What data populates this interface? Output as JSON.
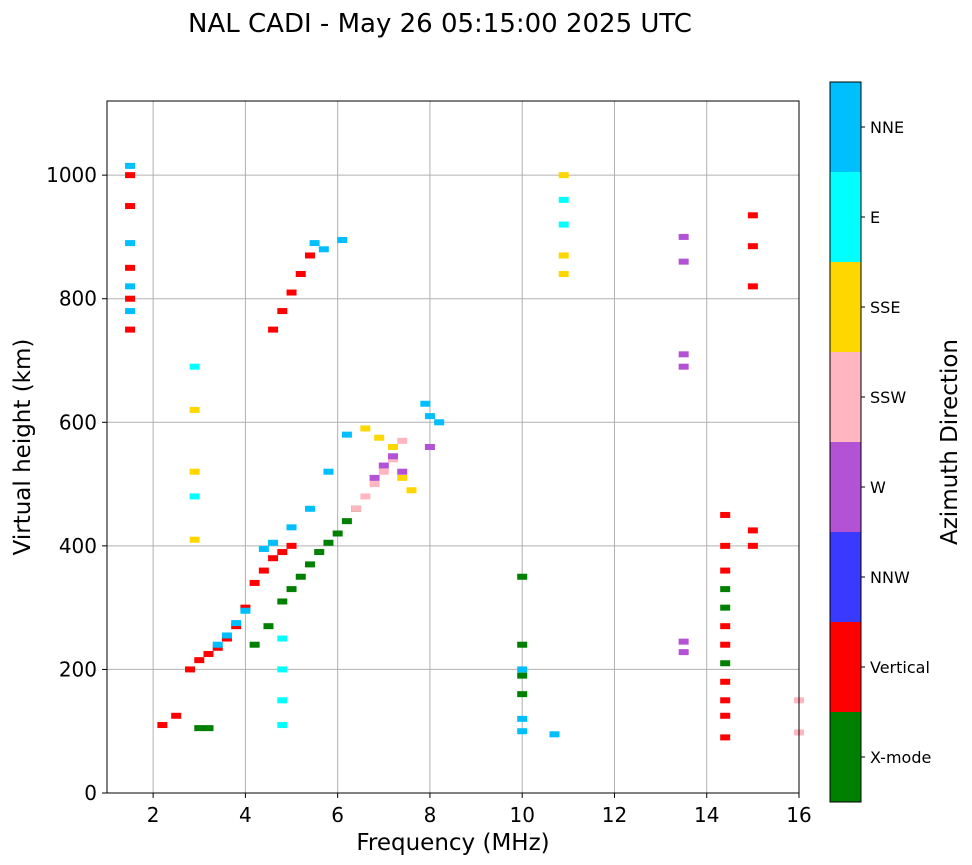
{
  "chart_data": {
    "type": "scatter",
    "title": "NAL CADI - May 26 05:15:00 2025 UTC",
    "xlabel": "Frequency (MHz)",
    "ylabel": "Virtual height (km)",
    "xlim": [
      1,
      16
    ],
    "ylim": [
      0,
      1120
    ],
    "xticks": [
      2,
      4,
      6,
      8,
      10,
      12,
      14,
      16
    ],
    "yticks": [
      0,
      200,
      400,
      600,
      800,
      1000
    ],
    "grid": true,
    "colorbar": {
      "label": "Azimuth Direction",
      "categories": [
        {
          "name": "X-mode",
          "color": "#008000"
        },
        {
          "name": "Vertical",
          "color": "#ff0000"
        },
        {
          "name": "NNW",
          "color": "#3a3aff"
        },
        {
          "name": "W",
          "color": "#b452d6"
        },
        {
          "name": "SSW",
          "color": "#ffb6c1"
        },
        {
          "name": "SSE",
          "color": "#ffd700"
        },
        {
          "name": "E",
          "color": "#00ffff"
        },
        {
          "name": "NNE",
          "color": "#00bfff"
        }
      ]
    },
    "traces": [
      {
        "category": "Vertical",
        "points": [
          [
            2.2,
            110
          ],
          [
            2.5,
            125
          ],
          [
            2.8,
            200
          ],
          [
            3.0,
            215
          ],
          [
            3.2,
            225
          ],
          [
            3.4,
            235
          ],
          [
            3.6,
            250
          ],
          [
            3.8,
            270
          ],
          [
            4.0,
            300
          ],
          [
            4.2,
            340
          ],
          [
            4.4,
            360
          ],
          [
            4.6,
            380
          ],
          [
            4.8,
            390
          ],
          [
            5.0,
            400
          ]
        ]
      },
      {
        "category": "NNE",
        "points": [
          [
            3.4,
            240
          ],
          [
            3.6,
            255
          ],
          [
            3.8,
            275
          ],
          [
            4.0,
            295
          ],
          [
            4.4,
            395
          ],
          [
            4.6,
            405
          ],
          [
            5.0,
            430
          ],
          [
            5.4,
            460
          ],
          [
            5.8,
            520
          ],
          [
            6.2,
            580
          ]
        ]
      },
      {
        "category": "X-mode",
        "points": [
          [
            3.0,
            105
          ],
          [
            3.2,
            105
          ],
          [
            4.2,
            240
          ],
          [
            4.5,
            270
          ],
          [
            4.8,
            310
          ],
          [
            5.0,
            330
          ],
          [
            5.2,
            350
          ],
          [
            5.4,
            370
          ],
          [
            5.6,
            390
          ],
          [
            5.8,
            405
          ],
          [
            6.0,
            420
          ],
          [
            6.2,
            440
          ],
          [
            6.4,
            460
          ]
        ]
      },
      {
        "category": "SSW",
        "points": [
          [
            6.4,
            460
          ],
          [
            6.6,
            480
          ],
          [
            6.8,
            500
          ],
          [
            7.0,
            520
          ],
          [
            7.2,
            540
          ],
          [
            7.4,
            570
          ]
        ]
      },
      {
        "category": "SSE",
        "points": [
          [
            6.6,
            590
          ],
          [
            6.9,
            575
          ],
          [
            7.2,
            560
          ],
          [
            7.4,
            510
          ],
          [
            7.6,
            490
          ]
        ]
      },
      {
        "category": "W",
        "points": [
          [
            6.8,
            510
          ],
          [
            7.0,
            530
          ],
          [
            7.2,
            545
          ],
          [
            7.4,
            520
          ],
          [
            8.0,
            560
          ]
        ]
      },
      {
        "category": "Vertical",
        "points": [
          [
            4.6,
            750
          ],
          [
            4.8,
            780
          ],
          [
            5.0,
            810
          ],
          [
            5.2,
            840
          ],
          [
            5.4,
            870
          ]
        ]
      },
      {
        "category": "NNE",
        "points": [
          [
            5.5,
            890
          ],
          [
            5.7,
            880
          ],
          [
            6.1,
            895
          ],
          [
            7.9,
            630
          ],
          [
            8.0,
            610
          ],
          [
            8.2,
            600
          ]
        ]
      },
      {
        "category": "Vertical",
        "points": [
          [
            1.5,
            1000
          ],
          [
            1.5,
            950
          ],
          [
            1.5,
            850
          ],
          [
            1.5,
            800
          ],
          [
            1.5,
            750
          ]
        ]
      },
      {
        "category": "NNE",
        "points": [
          [
            1.5,
            1015
          ],
          [
            1.5,
            890
          ],
          [
            1.5,
            820
          ],
          [
            1.5,
            780
          ]
        ]
      },
      {
        "category": "E",
        "points": [
          [
            2.9,
            690
          ],
          [
            2.9,
            480
          ],
          [
            4.8,
            250
          ],
          [
            4.8,
            200
          ],
          [
            4.8,
            150
          ],
          [
            4.8,
            110
          ],
          [
            10.9,
            960
          ],
          [
            10.9,
            920
          ]
        ]
      },
      {
        "category": "SSE",
        "points": [
          [
            2.9,
            620
          ],
          [
            2.9,
            520
          ],
          [
            2.9,
            410
          ],
          [
            10.9,
            1000
          ],
          [
            10.9,
            870
          ],
          [
            10.9,
            840
          ]
        ]
      },
      {
        "category": "X-mode",
        "points": [
          [
            10.0,
            350
          ],
          [
            10.0,
            240
          ],
          [
            10.0,
            190
          ],
          [
            10.0,
            160
          ],
          [
            14.4,
            330
          ],
          [
            14.4,
            300
          ],
          [
            14.4,
            210
          ]
        ]
      },
      {
        "category": "NNE",
        "points": [
          [
            10.0,
            200
          ],
          [
            10.0,
            120
          ],
          [
            10.0,
            100
          ],
          [
            10.7,
            95
          ]
        ]
      },
      {
        "category": "Vertical",
        "points": [
          [
            14.4,
            450
          ],
          [
            14.4,
            400
          ],
          [
            14.4,
            360
          ],
          [
            14.4,
            270
          ],
          [
            14.4,
            240
          ],
          [
            14.4,
            180
          ],
          [
            14.4,
            150
          ],
          [
            14.4,
            125
          ],
          [
            14.4,
            90
          ],
          [
            15.0,
            425
          ],
          [
            15.0,
            400
          ],
          [
            15.0,
            935
          ],
          [
            15.0,
            885
          ],
          [
            15.0,
            820
          ]
        ]
      },
      {
        "category": "W",
        "points": [
          [
            13.5,
            710
          ],
          [
            13.5,
            690
          ],
          [
            13.5,
            900
          ],
          [
            13.5,
            860
          ],
          [
            13.5,
            245
          ],
          [
            13.5,
            228
          ]
        ]
      },
      {
        "category": "SSW",
        "points": [
          [
            16.0,
            150
          ],
          [
            16.0,
            98
          ]
        ]
      }
    ]
  }
}
